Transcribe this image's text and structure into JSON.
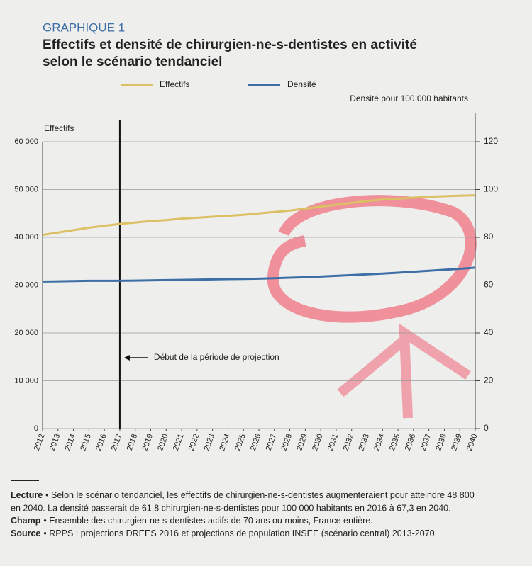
{
  "chart_data": {
    "type": "line",
    "kicker": "GRAPHIQUE 1",
    "title": "Effectifs et densité de chirurgien-ne-s-dentistes en activité",
    "subtitle": "selon le scénario tendanciel",
    "ylabel": "Effectifs",
    "y2label": "Densité pour 100 000 habitants",
    "annotation": "Début de la période de projection",
    "annotation_x": 2017,
    "x": [
      2012,
      2013,
      2014,
      2015,
      2016,
      2017,
      2018,
      2019,
      2020,
      2021,
      2022,
      2023,
      2024,
      2025,
      2026,
      2027,
      2028,
      2029,
      2030,
      2031,
      2032,
      2033,
      2034,
      2035,
      2036,
      2037,
      2038,
      2039,
      2040
    ],
    "xlim": [
      2012,
      2040
    ],
    "series": [
      {
        "name": "Effectifs",
        "color": "#dcc064",
        "values": [
          40500,
          41000,
          41500,
          42000,
          42400,
          42800,
          43100,
          43400,
          43600,
          43900,
          44100,
          44300,
          44500,
          44700,
          45000,
          45300,
          45600,
          46000,
          46400,
          46800,
          47200,
          47600,
          47900,
          48100,
          48300,
          48500,
          48600,
          48700,
          48800
        ]
      },
      {
        "name": "Densité",
        "color": "#3d6ea5",
        "axis": "y2",
        "values": [
          61.5,
          61.6,
          61.7,
          61.8,
          61.8,
          61.8,
          61.9,
          62.0,
          62.1,
          62.2,
          62.3,
          62.4,
          62.5,
          62.6,
          62.7,
          62.9,
          63.1,
          63.3,
          63.6,
          63.9,
          64.2,
          64.5,
          64.8,
          65.2,
          65.6,
          66.0,
          66.4,
          66.8,
          67.3
        ]
      }
    ],
    "ylim": [
      0,
      60000
    ],
    "yticks": [
      0,
      {
        "value": 10000,
        "label": "10 000"
      },
      {
        "value": 20000,
        "label": "20 000"
      },
      {
        "value": 30000,
        "label": "30 000"
      },
      {
        "value": 40000,
        "label": "40 000"
      },
      {
        "value": 50000,
        "label": "50 000"
      },
      {
        "value": 60000,
        "label": "60 000"
      }
    ],
    "y2lim": [
      0,
      120
    ],
    "y2ticks": [
      0,
      20,
      40,
      60,
      80,
      100,
      120
    ],
    "grid": true,
    "legend": "top",
    "notes": [
      {
        "label": "Lecture",
        "text": "• Selon le scénario tendanciel, les effectifs de chirurgien-ne-s-dentistes augmenteraient pour atteindre 48 800",
        "text2": "en 2040. La densité passerait de 61,8 chirurgien-ne-s-dentistes pour 100 000 habitants en 2016 à 67,3 en 2040."
      },
      {
        "label": "Champ",
        "text": "• Ensemble des chirurgien-ne-s-dentistes actifs de 70 ans ou moins, France entière."
      },
      {
        "label": "Source",
        "text": "• RPPS ; projections DREES 2016 et projections de population INSEE (scénario central) 2013-2070."
      }
    ]
  }
}
